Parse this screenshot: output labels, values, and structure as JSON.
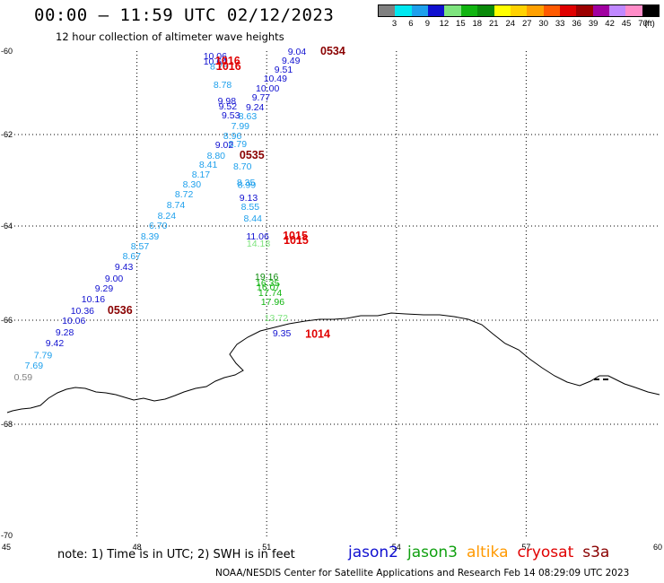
{
  "header": {
    "title": "00:00 — 11:59 UTC 02/12/2023",
    "subtitle": "12 hour collection of altimeter wave heights"
  },
  "colorbar": {
    "colors": [
      "#808080",
      "#00e8f0",
      "#1ea0ec",
      "#1010d0",
      "#7ee47e",
      "#10b410",
      "#0a8a0a",
      "#ffff00",
      "#ffd200",
      "#ffa000",
      "#ff5a00",
      "#e00000",
      "#9c0000",
      "#a000a0",
      "#c088ff",
      "#ff8cc8",
      "#000000"
    ],
    "labels": [
      "3",
      "6",
      "9",
      "12",
      "15",
      "18",
      "21",
      "24",
      "27",
      "30",
      "33",
      "36",
      "39",
      "42",
      "45",
      "70"
    ],
    "unit": "(ft)"
  },
  "chart_data": {
    "type": "scatter",
    "xlim": [
      45,
      60
    ],
    "ylim": [
      -60,
      -70
    ],
    "x_ticks": [
      45,
      48,
      51,
      54,
      57,
      60
    ],
    "y_ticks": [
      -60,
      -62,
      -64,
      -66,
      -68,
      -70
    ],
    "grid": true,
    "thresholds": [
      3,
      6,
      9,
      12,
      15,
      18,
      21
    ],
    "points": [
      {
        "lon": 51.7,
        "lat": -59.98,
        "v": "9.04"
      },
      {
        "lon": 51.56,
        "lat": -60.22,
        "v": "9.49"
      },
      {
        "lon": 51.39,
        "lat": -60.43,
        "v": "9.51"
      },
      {
        "lon": 51.2,
        "lat": -60.65,
        "v": "10.49"
      },
      {
        "lon": 51.02,
        "lat": -60.88,
        "v": "10.00"
      },
      {
        "lon": 50.87,
        "lat": -61.1,
        "v": "9.77"
      },
      {
        "lon": 50.73,
        "lat": -61.33,
        "v": "9.24"
      },
      {
        "lon": 50.56,
        "lat": -61.55,
        "v": "8.63"
      },
      {
        "lon": 50.39,
        "lat": -61.78,
        "v": "7.99"
      },
      {
        "lon": 50.21,
        "lat": -62.02,
        "v": "8.96"
      },
      {
        "lon": 50.33,
        "lat": -62.2,
        "v": "8.79"
      },
      {
        "lon": 49.81,
        "lat": -60.11,
        "v": "10.06"
      },
      {
        "lon": 49.81,
        "lat": -60.24,
        "v": "10.64"
      },
      {
        "lon": 49.9,
        "lat": -60.36,
        "v": "8.78"
      },
      {
        "lon": 49.98,
        "lat": -60.8,
        "v": "8.78"
      },
      {
        "lon": 50.08,
        "lat": -61.18,
        "v": "9.98"
      },
      {
        "lon": 50.1,
        "lat": -61.31,
        "v": "9.52"
      },
      {
        "lon": 50.17,
        "lat": -61.53,
        "v": "9.53"
      },
      {
        "lon": 50.02,
        "lat": -62.22,
        "v": "9.02"
      },
      {
        "lon": 49.83,
        "lat": -62.45,
        "v": "8.80"
      },
      {
        "lon": 49.65,
        "lat": -62.65,
        "v": "8.41"
      },
      {
        "lon": 49.48,
        "lat": -62.86,
        "v": "8.17"
      },
      {
        "lon": 49.27,
        "lat": -63.08,
        "v": "8.30"
      },
      {
        "lon": 49.09,
        "lat": -63.29,
        "v": "8.72"
      },
      {
        "lon": 48.9,
        "lat": -63.53,
        "v": "8.74"
      },
      {
        "lon": 48.69,
        "lat": -63.76,
        "v": "8.24"
      },
      {
        "lon": 48.49,
        "lat": -63.98,
        "v": "6.70"
      },
      {
        "lon": 48.3,
        "lat": -64.21,
        "v": "8.39"
      },
      {
        "lon": 48.07,
        "lat": -64.42,
        "v": "8.57"
      },
      {
        "lon": 47.88,
        "lat": -64.63,
        "v": "8.67"
      },
      {
        "lon": 47.7,
        "lat": -64.86,
        "v": "9.43"
      },
      {
        "lon": 47.47,
        "lat": -65.1,
        "v": "9.00"
      },
      {
        "lon": 47.24,
        "lat": -65.31,
        "v": "9.29"
      },
      {
        "lon": 46.99,
        "lat": -65.54,
        "v": "10.16"
      },
      {
        "lon": 46.74,
        "lat": -65.79,
        "v": "10.36"
      },
      {
        "lon": 46.54,
        "lat": -66.0,
        "v": "10.06"
      },
      {
        "lon": 46.33,
        "lat": -66.22,
        "v": "9.28"
      },
      {
        "lon": 46.1,
        "lat": -66.43,
        "v": "9.42"
      },
      {
        "lon": 45.83,
        "lat": -66.66,
        "v": "7.79"
      },
      {
        "lon": 45.62,
        "lat": -66.86,
        "v": "7.69"
      },
      {
        "lon": 45.37,
        "lat": -67.09,
        "v": "0.59"
      },
      {
        "lon": 50.44,
        "lat": -62.69,
        "v": "8.70"
      },
      {
        "lon": 50.52,
        "lat": -63.04,
        "v": "8.35"
      },
      {
        "lon": 50.54,
        "lat": -63.09,
        "v": "8.99"
      },
      {
        "lon": 50.58,
        "lat": -63.37,
        "v": "9.13"
      },
      {
        "lon": 50.62,
        "lat": -63.57,
        "v": "8.55"
      },
      {
        "lon": 50.68,
        "lat": -63.82,
        "v": "8.44"
      },
      {
        "lon": 50.79,
        "lat": -64.21,
        "v": "11.06"
      },
      {
        "lon": 50.81,
        "lat": -64.36,
        "v": "14.18"
      },
      {
        "lon": 51.0,
        "lat": -65.07,
        "v": "19.16"
      },
      {
        "lon": 51.02,
        "lat": -65.2,
        "v": "16.35"
      },
      {
        "lon": 51.04,
        "lat": -65.29,
        "v": "16.07"
      },
      {
        "lon": 51.08,
        "lat": -65.41,
        "v": "17.74"
      },
      {
        "lon": 51.14,
        "lat": -65.6,
        "v": "17.96"
      },
      {
        "lon": 51.22,
        "lat": -65.94,
        "v": "13.72"
      },
      {
        "lon": 51.35,
        "lat": -66.24,
        "v": "9.35"
      }
    ],
    "times": [
      {
        "lon": 52.53,
        "lat": -59.98,
        "t": "0534",
        "sat": "s3a"
      },
      {
        "lon": 50.1,
        "lat": -60.24,
        "t": "1016",
        "sat": "cryosat"
      },
      {
        "lon": 50.12,
        "lat": -60.37,
        "t": "1016",
        "sat": "cryosat"
      },
      {
        "lon": 50.66,
        "lat": -62.45,
        "t": "0535",
        "sat": "s3a"
      },
      {
        "lon": 51.66,
        "lat": -64.21,
        "t": "1015",
        "sat": "cryosat"
      },
      {
        "lon": 51.68,
        "lat": -64.3,
        "t": "1015",
        "sat": "cryosat"
      },
      {
        "lon": 47.61,
        "lat": -65.79,
        "t": "0536",
        "sat": "s3a"
      },
      {
        "lon": 52.18,
        "lat": -66.27,
        "t": "1014",
        "sat": "cryosat"
      }
    ]
  },
  "satellites": [
    {
      "key": "jason2",
      "label": "jason2",
      "color": "#1010d0"
    },
    {
      "key": "jason3",
      "label": "jason3",
      "color": "#10a010"
    },
    {
      "key": "altika",
      "label": "altika",
      "color": "#ff9900"
    },
    {
      "key": "cryosat",
      "label": "cryosat",
      "color": "#e00000"
    },
    {
      "key": "s3a",
      "label": "s3a",
      "color": "#8a0000"
    }
  ],
  "note": "note: 1) Time is in UTC; 2) SWH is in feet",
  "footer": "NOAA/NESDIS Center for Satellite Applications and Research   Feb 14 08:29:09 UTC 2023"
}
